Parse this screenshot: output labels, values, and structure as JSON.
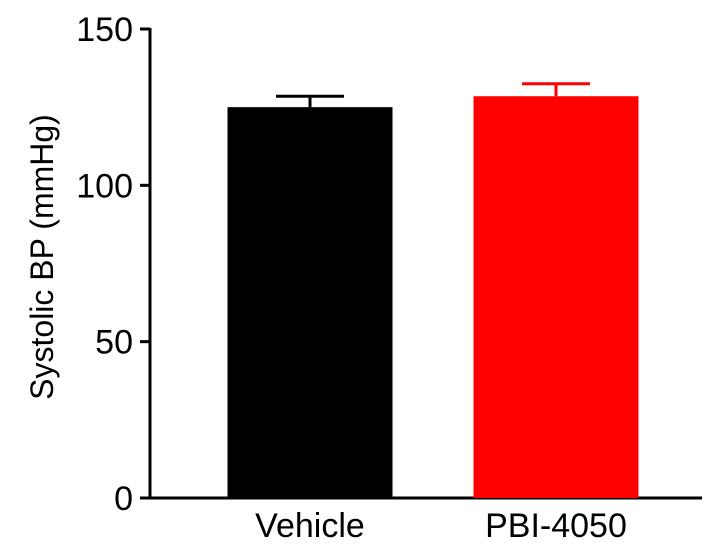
{
  "chart_data": {
    "type": "bar",
    "categories": [
      "Vehicle",
      "PBI-4050"
    ],
    "values": [
      125,
      128.5
    ],
    "errors": [
      3.5,
      4
    ],
    "colors": [
      "#000000",
      "#ff0000"
    ],
    "title": "",
    "xlabel": "",
    "ylabel": "Systolic BP (mmHg)",
    "ylim": [
      0,
      150
    ],
    "yticks": [
      0,
      50,
      100,
      150
    ],
    "grid": false
  }
}
